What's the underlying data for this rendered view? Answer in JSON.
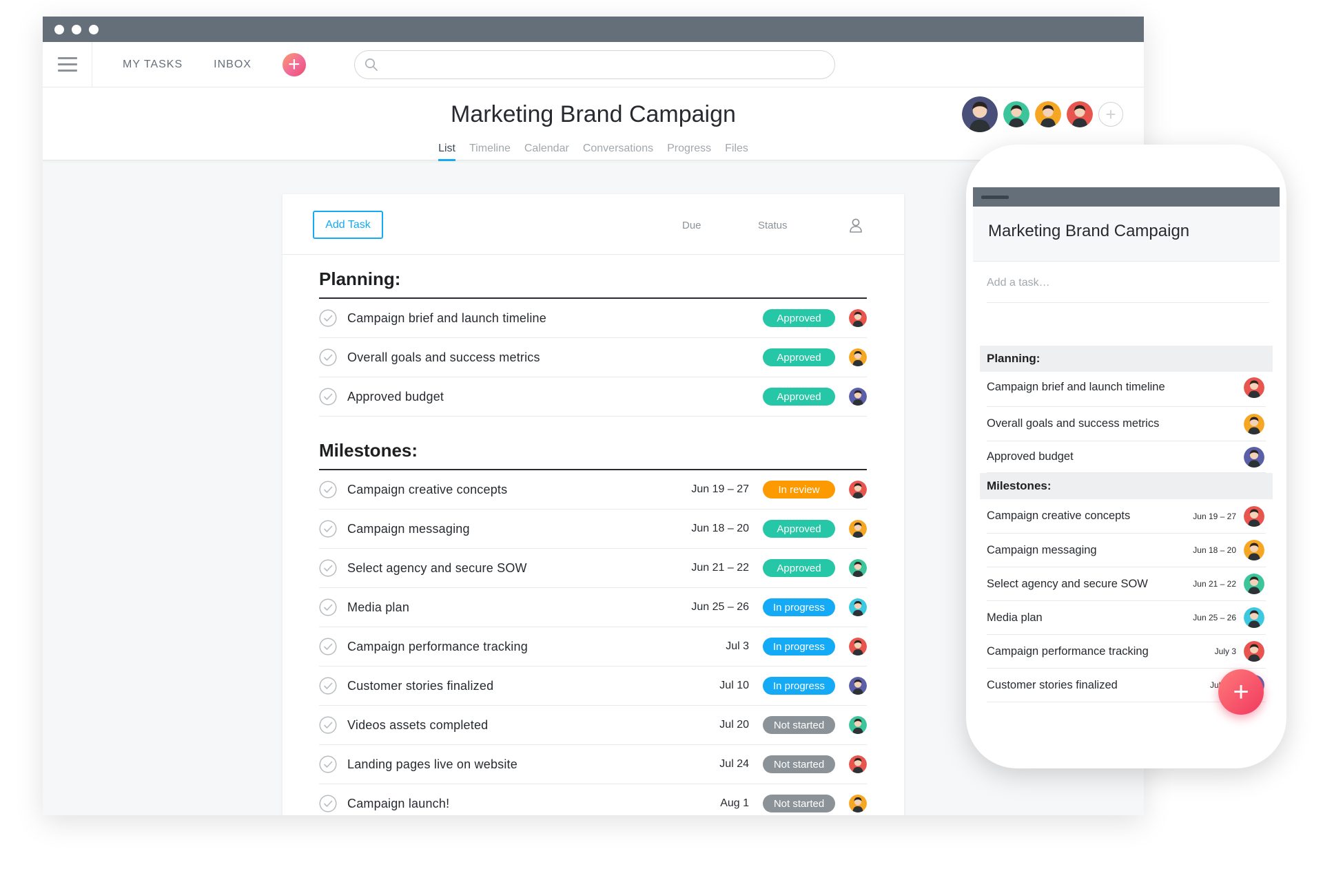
{
  "colors": {
    "accent": "#14aaf5",
    "approved": "#25c7a6",
    "in_review": "#fd9a00",
    "in_progress": "#14aaf5",
    "not_started": "#8b9399",
    "titlebar": "#646f79"
  },
  "nav": {
    "my_tasks": "MY TASKS",
    "inbox": "INBOX",
    "add_icon": "plus-icon",
    "search_icon": "search-icon",
    "search_placeholder": ""
  },
  "project": {
    "title": "Marketing Brand Campaign",
    "tabs": [
      {
        "label": "List",
        "active": true
      },
      {
        "label": "Timeline"
      },
      {
        "label": "Calendar"
      },
      {
        "label": "Conversations"
      },
      {
        "label": "Progress"
      },
      {
        "label": "Files"
      }
    ],
    "members": [
      {
        "color": "#4a4f7a"
      },
      {
        "color": "#3cc49a"
      },
      {
        "color": "#f5a623"
      },
      {
        "color": "#e8554e"
      }
    ]
  },
  "list": {
    "add_task_label": "Add Task",
    "col_due": "Due",
    "col_status": "Status",
    "assignee_icon": "person-icon",
    "sections": [
      {
        "title": "Planning:",
        "tasks": [
          {
            "name": "Campaign brief and launch timeline",
            "due": "",
            "status": "Approved",
            "status_color": "#25c7a6",
            "avatar": "#e8554e"
          },
          {
            "name": "Overall goals and success metrics",
            "due": "",
            "status": "Approved",
            "status_color": "#25c7a6",
            "avatar": "#f5a623"
          },
          {
            "name": "Approved budget",
            "due": "",
            "status": "Approved",
            "status_color": "#25c7a6",
            "avatar": "#5b5fa8"
          }
        ]
      },
      {
        "title": "Milestones:",
        "tasks": [
          {
            "name": "Campaign creative concepts",
            "due": "Jun 19 – 27",
            "status": "In review",
            "status_color": "#fd9a00",
            "avatar": "#e8554e"
          },
          {
            "name": "Campaign messaging",
            "due": "Jun 18 – 20",
            "status": "Approved",
            "status_color": "#25c7a6",
            "avatar": "#f5a623"
          },
          {
            "name": "Select agency and secure SOW",
            "due": "Jun 21 – 22",
            "status": "Approved",
            "status_color": "#25c7a6",
            "avatar": "#3cc49a"
          },
          {
            "name": "Media plan",
            "due": "Jun 25 – 26",
            "status": "In progress",
            "status_color": "#14aaf5",
            "avatar": "#3cc9e0"
          },
          {
            "name": "Campaign performance tracking",
            "due": "Jul 3",
            "status": "In progress",
            "status_color": "#14aaf5",
            "avatar": "#e8554e"
          },
          {
            "name": "Customer stories finalized",
            "due": "Jul 10",
            "status": "In progress",
            "status_color": "#14aaf5",
            "avatar": "#5b5fa8"
          },
          {
            "name": "Videos assets completed",
            "due": "Jul 20",
            "status": "Not started",
            "status_color": "#8b9399",
            "avatar": "#3cc49a"
          },
          {
            "name": "Landing pages live on website",
            "due": "Jul 24",
            "status": "Not started",
            "status_color": "#8b9399",
            "avatar": "#e8554e"
          },
          {
            "name": "Campaign launch!",
            "due": "Aug 1",
            "status": "Not started",
            "status_color": "#8b9399",
            "avatar": "#f5a623"
          }
        ]
      }
    ]
  },
  "mobile": {
    "title": "Marketing Brand Campaign",
    "add_task_placeholder": "Add a task…",
    "fab_icon": "plus-icon",
    "sections": [
      {
        "title": "Planning:",
        "tasks": [
          {
            "name": "Campaign brief and launch timeline",
            "due": "",
            "avatar": "#e8554e"
          },
          {
            "name": "Overall goals and success metrics",
            "due": "",
            "avatar": "#f5a623"
          },
          {
            "name": "Approved budget",
            "due": "",
            "avatar": "#5b5fa8"
          }
        ]
      },
      {
        "title": "Milestones:",
        "tasks": [
          {
            "name": "Campaign creative concepts",
            "due": "Jun 19 – 27",
            "avatar": "#e8554e"
          },
          {
            "name": "Campaign messaging",
            "due": "Jun 18 – 20",
            "avatar": "#f5a623"
          },
          {
            "name": "Select agency and secure SOW",
            "due": "Jun 21 – 22",
            "avatar": "#3cc49a"
          },
          {
            "name": "Media plan",
            "due": "Jun 25 – 26",
            "avatar": "#3cc9e0"
          },
          {
            "name": "Campaign performance tracking",
            "due": "July 3",
            "avatar": "#e8554e"
          },
          {
            "name": "Customer stories finalized",
            "due": "July 10",
            "avatar": "#5b5fa8"
          }
        ]
      }
    ]
  }
}
